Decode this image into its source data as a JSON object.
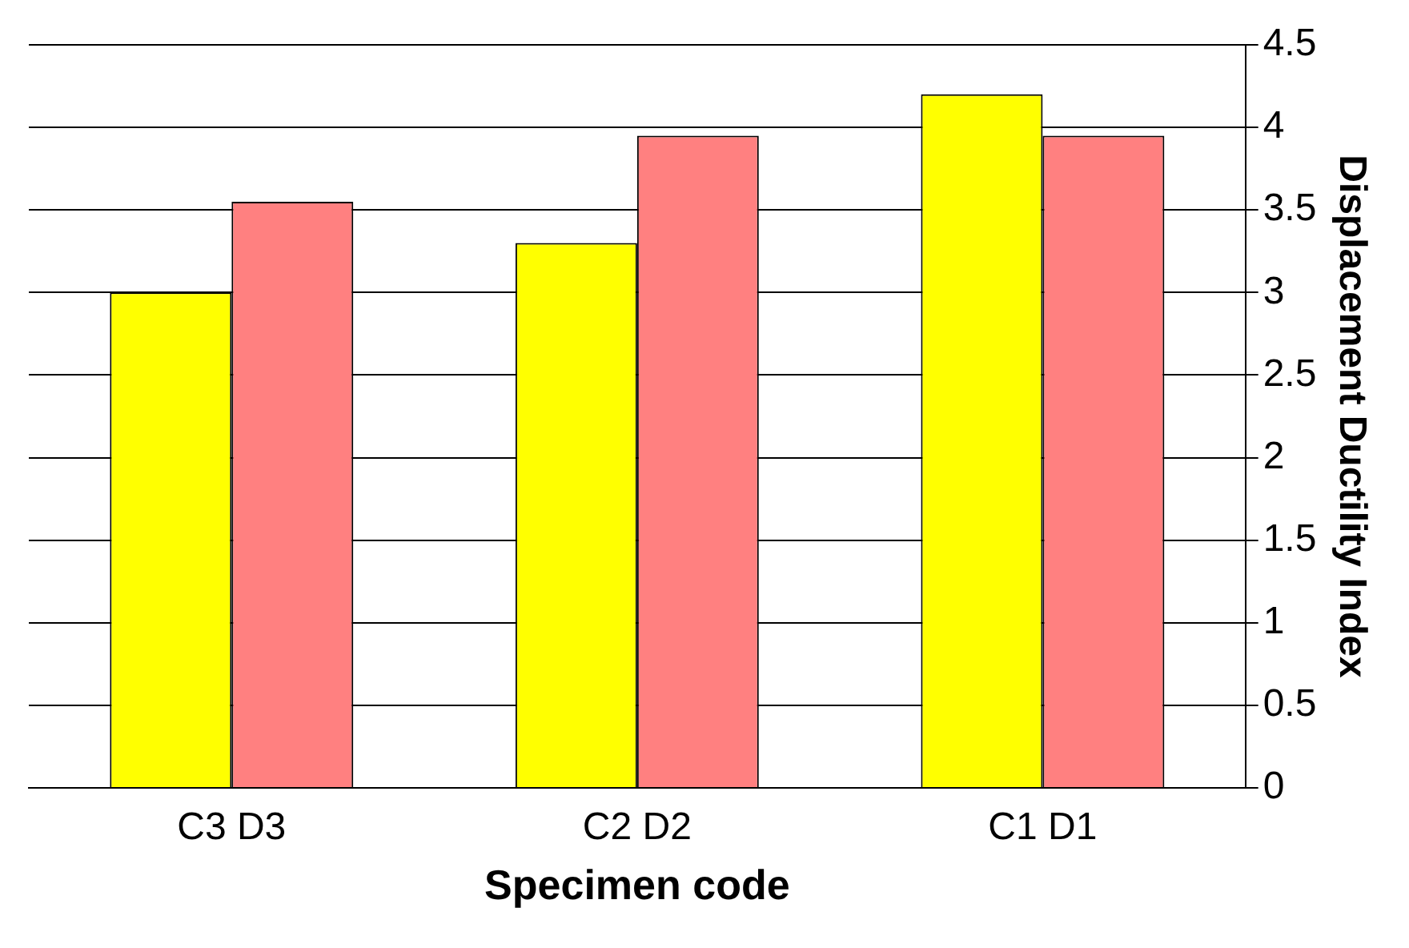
{
  "chart_data": {
    "type": "bar",
    "xlabel": "Specimen code",
    "ylabel": "Displacement Ductility Index",
    "categories": [
      "C3 D3",
      "C2 D2",
      "C1 D1"
    ],
    "series": [
      {
        "color": "#ffff00",
        "values": [
          3.0,
          3.3,
          4.2
        ]
      },
      {
        "color": "#ff8080",
        "values": [
          3.55,
          3.95,
          3.95
        ]
      }
    ],
    "ylim": [
      0,
      4.5
    ],
    "yticks": [
      0,
      0.5,
      1,
      1.5,
      2,
      2.5,
      3,
      3.5,
      4,
      4.5
    ],
    "grid": "y",
    "legend": false
  }
}
